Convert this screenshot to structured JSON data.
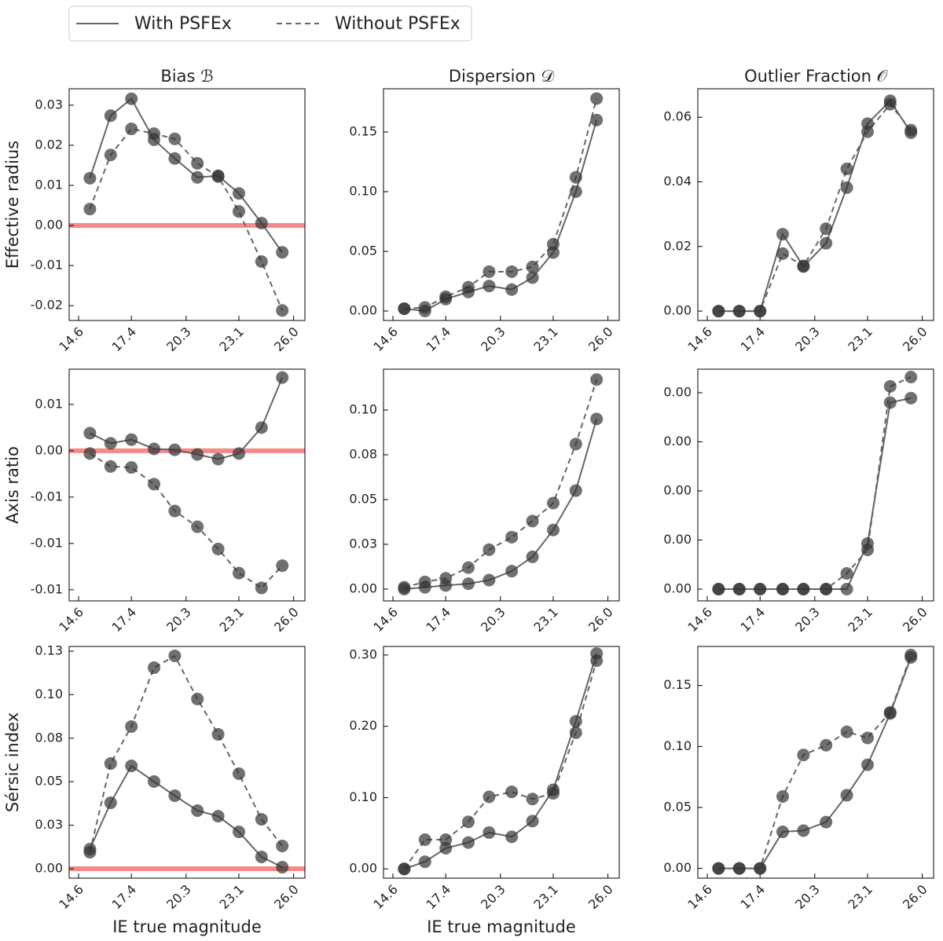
{
  "chart_data": [
    {
      "type": "line",
      "title": "Bias ℬ",
      "ylabel": "Effective radius",
      "legend": "above",
      "x": [
        15.2,
        16.3,
        17.4,
        18.6,
        19.7,
        20.9,
        22.0,
        23.1,
        24.3,
        25.4
      ],
      "series": [
        {
          "name": "With PSFEx",
          "color": "#666666",
          "linestyle": "solid",
          "values": [
            0.0118,
            0.0274,
            0.0316,
            0.0214,
            0.0167,
            0.012,
            0.0124,
            0.008,
            0.0006,
            -0.0067
          ]
        },
        {
          "name": "Without PSFEx",
          "color": "#666666",
          "linestyle": "dashed",
          "values": [
            0.0041,
            0.0176,
            0.0241,
            0.0229,
            0.0216,
            0.0155,
            0.0122,
            0.0035,
            -0.009,
            -0.0212
          ]
        }
      ],
      "reference_line": {
        "y": 0,
        "color": "#f47c7c"
      },
      "xlim": [
        14.1,
        26.6
      ],
      "xticks": [
        14.6,
        17.4,
        20.3,
        23.1,
        {
          "value": 26,
          "label": "26.0"
        }
      ],
      "ylim": [
        -0.0237,
        0.0341
      ],
      "yticks": [
        -0.02,
        -0.01,
        {
          "value": 0,
          "label": "0.00"
        },
        0.01,
        0.02,
        0.03
      ]
    },
    {
      "type": "line",
      "title": "Dispersion 𝒟",
      "x": [
        15.2,
        16.3,
        17.4,
        18.6,
        19.7,
        20.9,
        22.0,
        23.1,
        24.3,
        25.4
      ],
      "series": [
        {
          "name": "With PSFEx",
          "color": "#666666",
          "linestyle": "solid",
          "values": [
            0.002,
            0.0,
            0.01,
            0.016,
            0.021,
            0.018,
            0.028,
            0.049,
            0.1,
            0.16
          ]
        },
        {
          "name": "Without PSFEx",
          "color": "#666666",
          "linestyle": "dashed",
          "values": [
            0.002,
            0.003,
            0.012,
            0.02,
            0.033,
            0.033,
            0.037,
            0.056,
            0.112,
            0.178
          ]
        }
      ],
      "xlim": [
        14.1,
        26.6
      ],
      "xticks": [
        14.6,
        17.4,
        20.3,
        23.1,
        {
          "value": 26,
          "label": "26.0"
        }
      ],
      "ylim": [
        -0.0079,
        0.1862
      ],
      "yticks": [
        {
          "value": 0,
          "label": "0.00"
        },
        0.05,
        {
          "value": 0.1,
          "label": "0.10"
        },
        0.15
      ]
    },
    {
      "type": "line",
      "title": "Outlier Fraction 𝒪",
      "x": [
        15.2,
        16.3,
        17.4,
        18.6,
        19.7,
        20.9,
        22.0,
        23.1,
        24.3,
        25.4
      ],
      "series": [
        {
          "name": "With PSFEx",
          "color": "#666666",
          "linestyle": "solid",
          "values": [
            0,
            0,
            0,
            0.0238,
            0.0138,
            0.021,
            0.0382,
            0.058,
            0.0651,
            0.0552
          ]
        },
        {
          "name": "Without PSFEx",
          "color": "#666666",
          "linestyle": "dashed",
          "values": [
            0,
            0,
            0,
            0.0178,
            0.014,
            0.0255,
            0.044,
            0.0555,
            0.064,
            0.056
          ]
        }
      ],
      "xlim": [
        14.1,
        26.6
      ],
      "xticks": [
        14.6,
        17.4,
        20.3,
        23.1,
        {
          "value": 26,
          "label": "26.0"
        }
      ],
      "ylim": [
        -0.0029,
        0.0688
      ],
      "yticks": [
        {
          "value": 0,
          "label": "0.00"
        },
        0.02,
        0.04,
        0.06
      ]
    },
    {
      "type": "line",
      "ylabel": "Axis ratio",
      "x": [
        15.2,
        16.3,
        17.4,
        18.6,
        19.7,
        20.9,
        22.0,
        23.1,
        24.3,
        25.4
      ],
      "series": [
        {
          "name": "With PSFEx",
          "color": "#666666",
          "linestyle": "solid",
          "values": [
            0.0019,
            0.0008,
            0.0012,
            0.0002,
            0.0001,
            -0.0004,
            -0.0009,
            -0.0003,
            0.0025,
            0.0079
          ]
        },
        {
          "name": "Without PSFEx",
          "color": "#666666",
          "linestyle": "dashed",
          "values": [
            -0.0003,
            -0.0017,
            -0.0018,
            -0.0036,
            -0.0065,
            -0.0082,
            -0.0106,
            -0.0132,
            -0.0148,
            -0.0124
          ]
        }
      ],
      "reference_line": {
        "y": 0,
        "color": "#f47c7c"
      },
      "xlim": [
        14.1,
        26.6
      ],
      "xticks": [
        14.6,
        17.4,
        20.3,
        23.1,
        {
          "value": 26,
          "label": "26.0"
        }
      ],
      "ylim": [
        -0.0162,
        0.0088
      ],
      "yticks": [
        {
          "value": -0.015,
          "label": "-0.01"
        },
        -0.01,
        {
          "value": -0.005,
          "label": "-0.01"
        },
        {
          "value": 0,
          "label": "0.00"
        },
        {
          "value": 0.005,
          "label": "0.01"
        }
      ]
    },
    {
      "type": "line",
      "x": [
        15.2,
        16.3,
        17.4,
        18.6,
        19.7,
        20.9,
        22.0,
        23.1,
        24.3,
        25.4
      ],
      "series": [
        {
          "name": "With PSFEx",
          "color": "#666666",
          "linestyle": "solid",
          "values": [
            0.0,
            0.001,
            0.002,
            0.003,
            0.005,
            0.01,
            0.018,
            0.033,
            0.055,
            0.095
          ]
        },
        {
          "name": "Without PSFEx",
          "color": "#666666",
          "linestyle": "dashed",
          "values": [
            0.001,
            0.004,
            0.006,
            0.012,
            0.022,
            0.029,
            0.038,
            0.048,
            0.081,
            0.117
          ]
        }
      ],
      "xlim": [
        14.1,
        26.6
      ],
      "xticks": [
        14.6,
        17.4,
        20.3,
        23.1,
        {
          "value": 26,
          "label": "26.0"
        }
      ],
      "ylim": [
        -0.0066,
        0.1228
      ],
      "yticks": [
        {
          "value": 0,
          "label": "0.00"
        },
        {
          "value": 0.025,
          "label": "0.03"
        },
        {
          "value": 0.05,
          "label": "0.05"
        },
        {
          "value": 0.075,
          "label": "0.08"
        },
        {
          "value": 0.1,
          "label": "0.10"
        }
      ]
    },
    {
      "type": "line",
      "x": [
        15.2,
        16.3,
        17.4,
        18.6,
        19.7,
        20.9,
        22.0,
        23.1,
        24.3,
        25.4
      ],
      "series": [
        {
          "name": "With PSFEx",
          "color": "#666666",
          "linestyle": "solid",
          "values": [
            0,
            0,
            0,
            0,
            0,
            0,
            0,
            0.00093,
            0.0038,
            0.00389
          ]
        },
        {
          "name": "Without PSFEx",
          "color": "#666666",
          "linestyle": "dashed",
          "values": [
            0,
            0,
            0,
            0,
            0,
            0,
            0.00032,
            0.0008,
            0.00413,
            0.00432
          ]
        }
      ],
      "xlim": [
        14.1,
        26.6
      ],
      "xticks": [
        14.6,
        17.4,
        20.3,
        23.1,
        {
          "value": 26,
          "label": "26.0"
        }
      ],
      "ylim": [
        -0.00024,
        0.00448
      ],
      "yticks": [
        {
          "value": 0,
          "label": "0.00"
        },
        {
          "value": 0.001,
          "label": "0.00"
        },
        {
          "value": 0.002,
          "label": "0.00"
        },
        {
          "value": 0.003,
          "label": "0.00"
        },
        {
          "value": 0.004,
          "label": "0.00"
        }
      ]
    },
    {
      "type": "line",
      "ylabel": "Sérsic index",
      "xlabel": "IE true magnitude",
      "x": [
        15.2,
        16.3,
        17.4,
        18.6,
        19.7,
        20.9,
        22.0,
        23.1,
        24.3,
        25.4
      ],
      "series": [
        {
          "name": "With PSFEx",
          "color": "#666666",
          "linestyle": "solid",
          "values": [
            0.0113,
            0.0379,
            0.0591,
            0.0501,
            0.042,
            0.0334,
            0.0302,
            0.0212,
            0.0068,
            0.0009
          ]
        },
        {
          "name": "Without PSFEx",
          "color": "#666666",
          "linestyle": "dashed",
          "values": [
            0.0095,
            0.0605,
            0.0817,
            0.1155,
            0.1223,
            0.0975,
            0.0772,
            0.0546,
            0.0284,
            0.0131
          ]
        }
      ],
      "reference_line": {
        "y": 0,
        "color": "#f47c7c"
      },
      "xlim": [
        14.1,
        26.6
      ],
      "xticks": [
        14.6,
        17.4,
        20.3,
        23.1,
        {
          "value": 26,
          "label": "26.0"
        }
      ],
      "ylim": [
        -0.0054,
        0.1277
      ],
      "yticks": [
        {
          "value": 0,
          "label": "0.00"
        },
        {
          "value": 0.025,
          "label": "0.03"
        },
        {
          "value": 0.05,
          "label": "0.05"
        },
        {
          "value": 0.075,
          "label": "0.08"
        },
        {
          "value": 0.1,
          "label": "0.10"
        },
        {
          "value": 0.125,
          "label": "0.13"
        }
      ]
    },
    {
      "type": "line",
      "xlabel": "IE true magnitude",
      "x": [
        15.2,
        16.3,
        17.4,
        18.6,
        19.7,
        20.9,
        22.0,
        23.1,
        24.3,
        25.4
      ],
      "series": [
        {
          "name": "With PSFEx",
          "color": "#666666",
          "linestyle": "solid",
          "values": [
            0.0,
            0.01,
            0.029,
            0.037,
            0.051,
            0.045,
            0.067,
            0.111,
            0.207,
            0.302
          ]
        },
        {
          "name": "Without PSFEx",
          "color": "#666666",
          "linestyle": "dashed",
          "values": [
            0.0,
            0.041,
            0.041,
            0.066,
            0.101,
            0.108,
            0.098,
            0.106,
            0.191,
            0.292
          ]
        }
      ],
      "xlim": [
        14.1,
        26.6
      ],
      "xticks": [
        14.6,
        17.4,
        20.3,
        23.1,
        {
          "value": 26,
          "label": "26.0"
        }
      ],
      "ylim": [
        -0.013,
        0.312
      ],
      "yticks": [
        {
          "value": 0,
          "label": "0.00"
        },
        {
          "value": 0.1,
          "label": "0.10"
        },
        {
          "value": 0.2,
          "label": "0.20"
        },
        {
          "value": 0.3,
          "label": "0.30"
        }
      ]
    },
    {
      "type": "line",
      "x": [
        15.2,
        16.3,
        17.4,
        18.6,
        19.7,
        20.9,
        22.0,
        23.1,
        24.3,
        25.4
      ],
      "series": [
        {
          "name": "With PSFEx",
          "color": "#666666",
          "linestyle": "solid",
          "values": [
            0,
            0,
            0,
            0.03,
            0.031,
            0.038,
            0.06,
            0.085,
            0.127,
            0.173
          ]
        },
        {
          "name": "Without PSFEx",
          "color": "#666666",
          "linestyle": "dashed",
          "values": [
            0,
            0,
            0,
            0.059,
            0.093,
            0.101,
            0.112,
            0.107,
            0.128,
            0.175
          ]
        }
      ],
      "xlim": [
        14.1,
        26.6
      ],
      "xticks": [
        14.6,
        17.4,
        20.3,
        23.1,
        {
          "value": 26,
          "label": "26.0"
        }
      ],
      "ylim": [
        -0.008,
        0.182
      ],
      "yticks": [
        {
          "value": 0,
          "label": "0.00"
        },
        0.05,
        {
          "value": 0.1,
          "label": "0.10"
        },
        0.15
      ]
    }
  ]
}
